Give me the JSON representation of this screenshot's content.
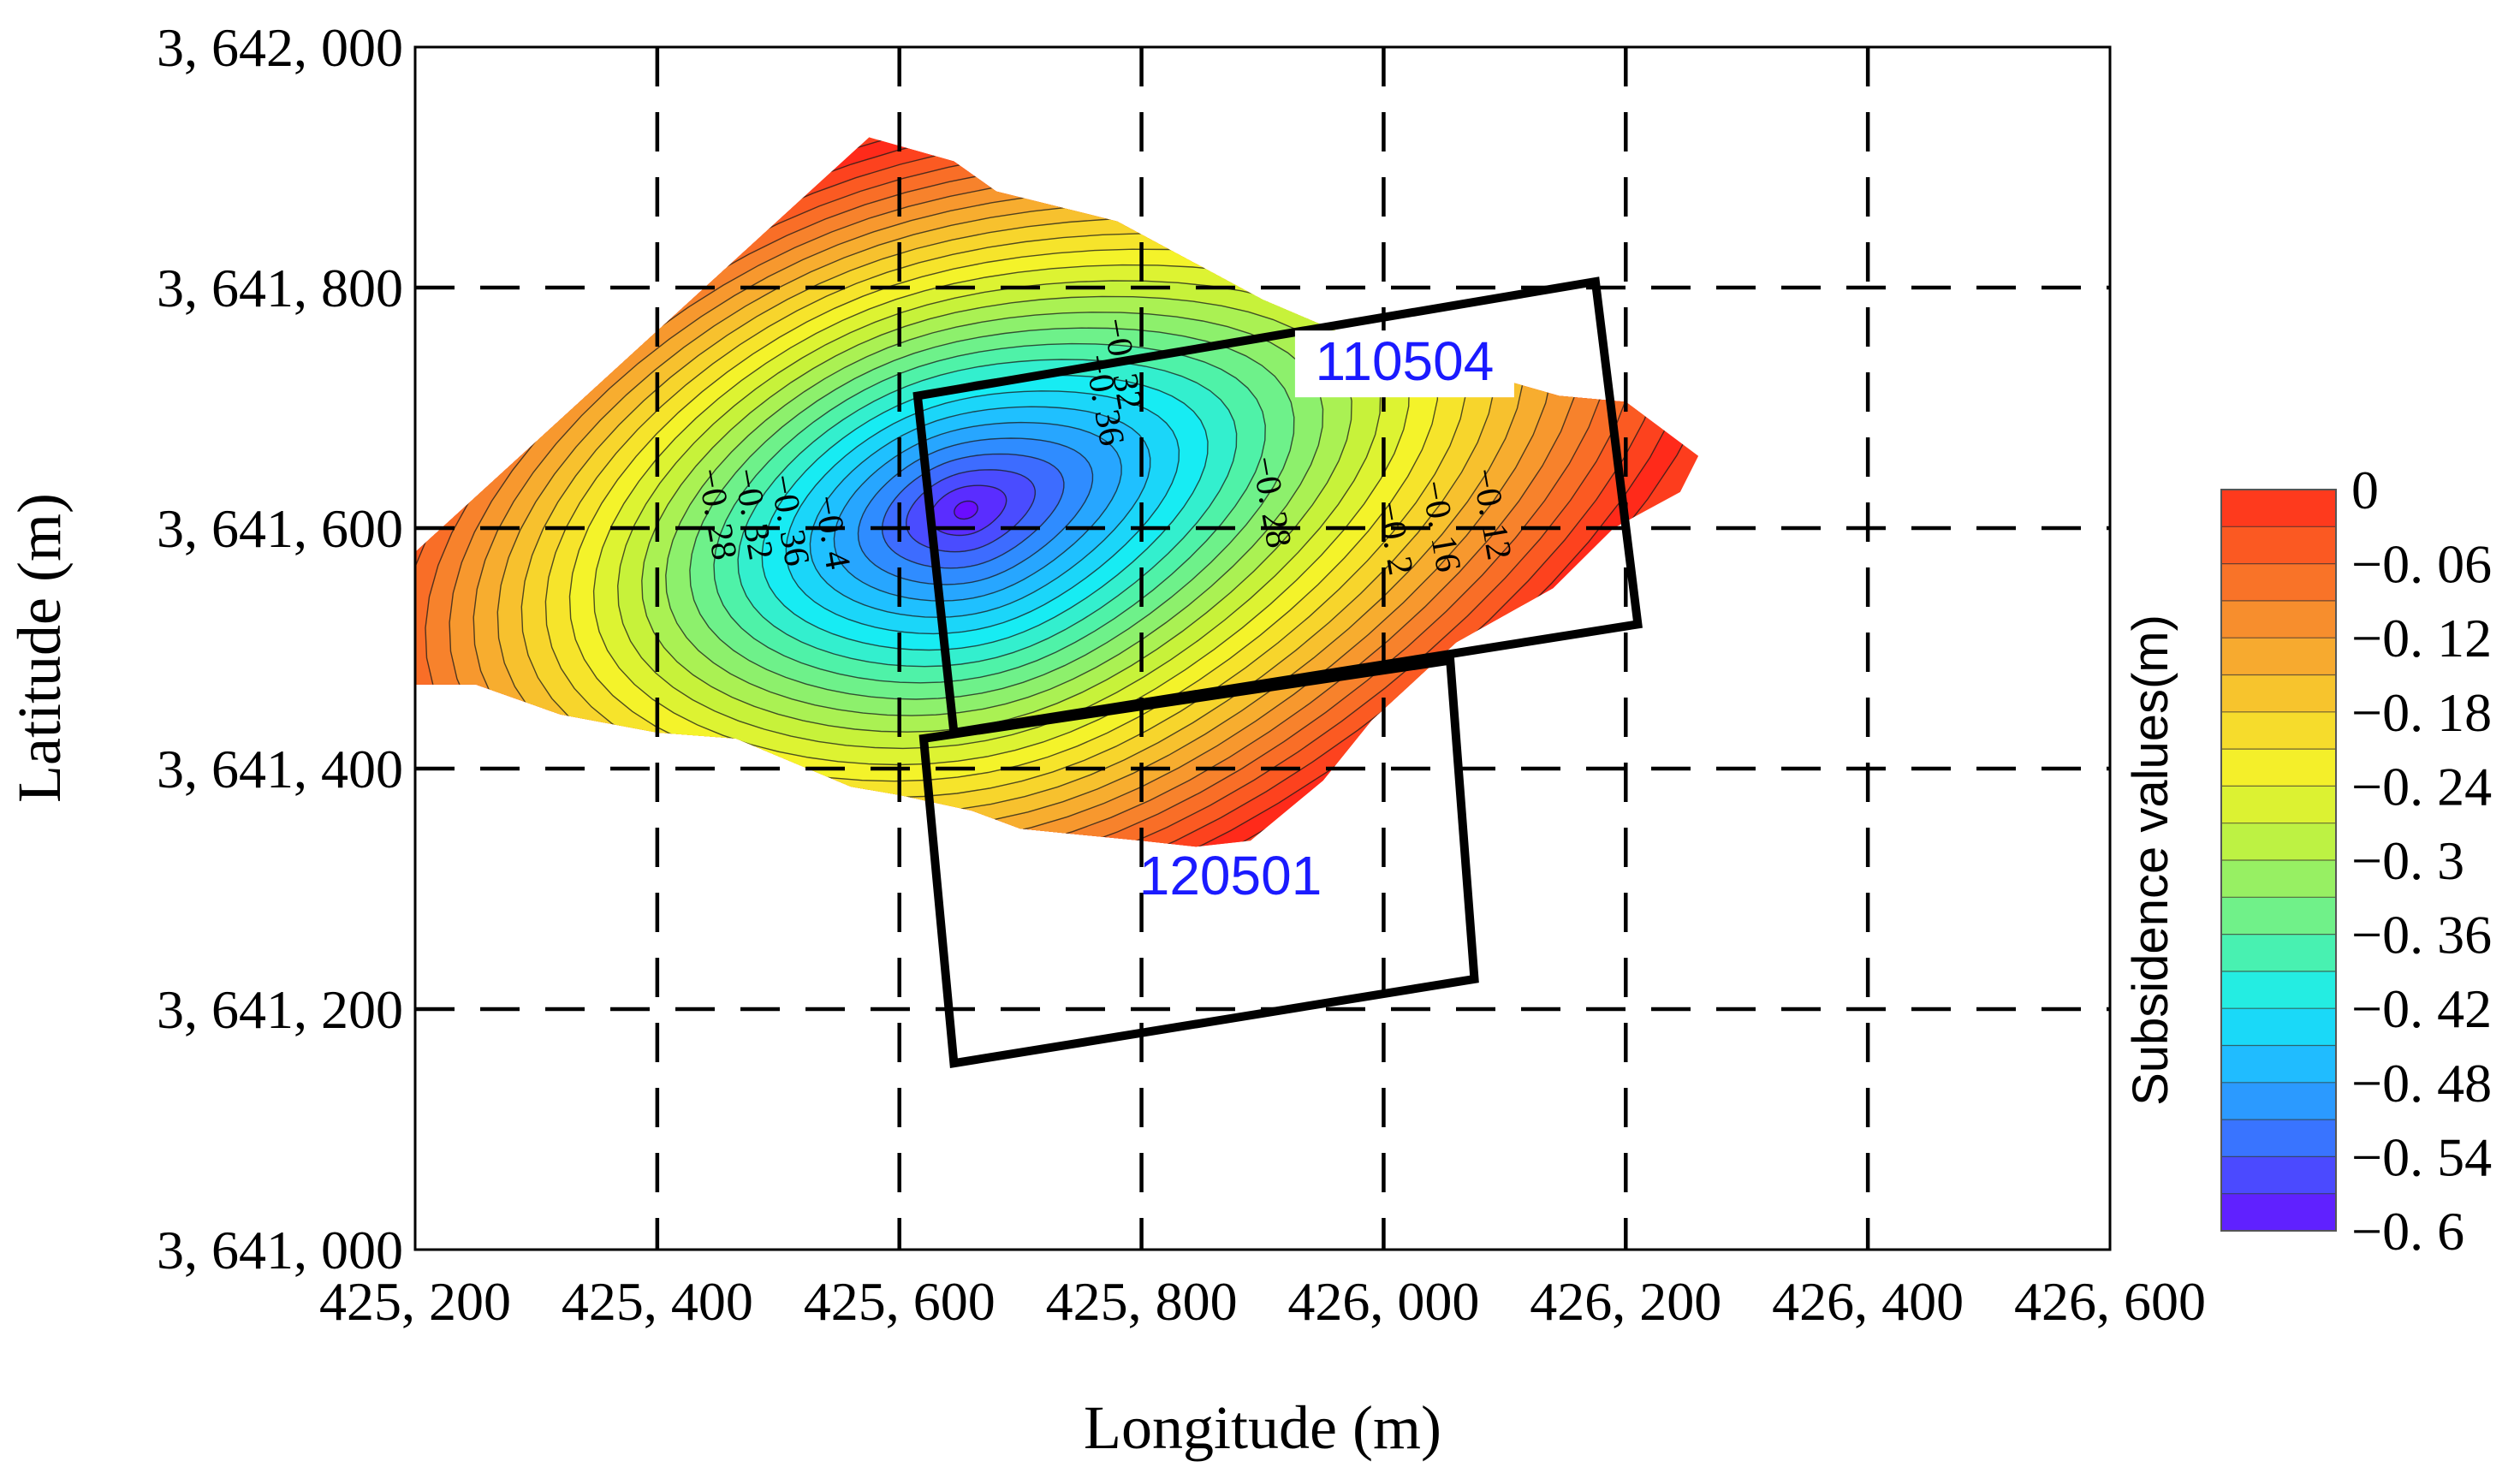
{
  "chart_data": {
    "type": "heatmap",
    "subtype": "filled-contour",
    "xlabel": "Longitude (m)",
    "ylabel": "Latitude (m)",
    "xlim": [
      425200,
      426600
    ],
    "ylim": [
      3641000,
      3642000
    ],
    "x_ticks": [
      425200,
      425400,
      425600,
      425800,
      426000,
      426200,
      426400,
      426600
    ],
    "y_ticks": [
      3641000,
      3641200,
      3641400,
      3641600,
      3641800,
      3642000
    ],
    "x_tick_labels": [
      "425, 200",
      "425, 400",
      "425, 600",
      "425, 800",
      "426, 000",
      "426, 200",
      "426, 400",
      "426, 600"
    ],
    "y_tick_labels": [
      "3, 641, 000",
      "3, 641, 200",
      "3, 641, 400",
      "3, 641, 600",
      "3, 641, 800",
      "3, 642, 000"
    ],
    "grid": "dashed",
    "colorbar": {
      "title": "Subsidence values(m)",
      "min": -0.6,
      "max": 0,
      "tick_values": [
        0,
        -0.06,
        -0.12,
        -0.18,
        -0.24,
        -0.3,
        -0.36,
        -0.42,
        -0.48,
        -0.54,
        -0.6
      ],
      "tick_labels": [
        "0",
        "−0. 06",
        "−0. 12",
        "−0. 18",
        "−0. 24",
        "−0. 3",
        "−0. 36",
        "−0. 42",
        "−0. 48",
        "−0. 54",
        "−0. 6"
      ],
      "colormap": [
        "#6a0dff",
        "#4a4cff",
        "#2f8cff",
        "#1fc0ff",
        "#17ecf3",
        "#4ff2a8",
        "#8df06c",
        "#c7f23a",
        "#f4f32a",
        "#f7d52c",
        "#f7ad2f",
        "#f7822c",
        "#fb5a22",
        "#ff2a1a"
      ]
    },
    "subsidence_center": {
      "x": 425655,
      "y": 3641615,
      "value": -0.6
    },
    "contour_labels": [
      {
        "text": "−0. 32",
        "x": 425775,
        "y": 3641735
      },
      {
        "text": "−0. 36",
        "x": 425760,
        "y": 3641705
      },
      {
        "text": "−0. 28",
        "x": 425440,
        "y": 3641610
      },
      {
        "text": "−0. 32",
        "x": 425470,
        "y": 3641610
      },
      {
        "text": "−0. 36",
        "x": 425500,
        "y": 3641605
      },
      {
        "text": "−0. 4",
        "x": 425535,
        "y": 3641595
      },
      {
        "text": "−0. 28",
        "x": 425898,
        "y": 3641620
      },
      {
        "text": "−0. 2",
        "x": 426000,
        "y": 3641590
      },
      {
        "text": "−0. 16",
        "x": 426038,
        "y": 3641600
      },
      {
        "text": "−0. 12",
        "x": 426080,
        "y": 3641610
      }
    ],
    "working_faces": [
      {
        "label": "110504",
        "corners": [
          [
            425615,
            3641710
          ],
          [
            426175,
            3641805
          ],
          [
            426210,
            3641520
          ],
          [
            425645,
            3641430
          ]
        ]
      },
      {
        "label": "120501",
        "corners": [
          [
            425620,
            3641425
          ],
          [
            426055,
            3641490
          ],
          [
            426075,
            3641225
          ],
          [
            425645,
            3641155
          ]
        ]
      }
    ],
    "colors": {
      "panel_label": "#1a1aff",
      "outline": "#000000"
    }
  }
}
